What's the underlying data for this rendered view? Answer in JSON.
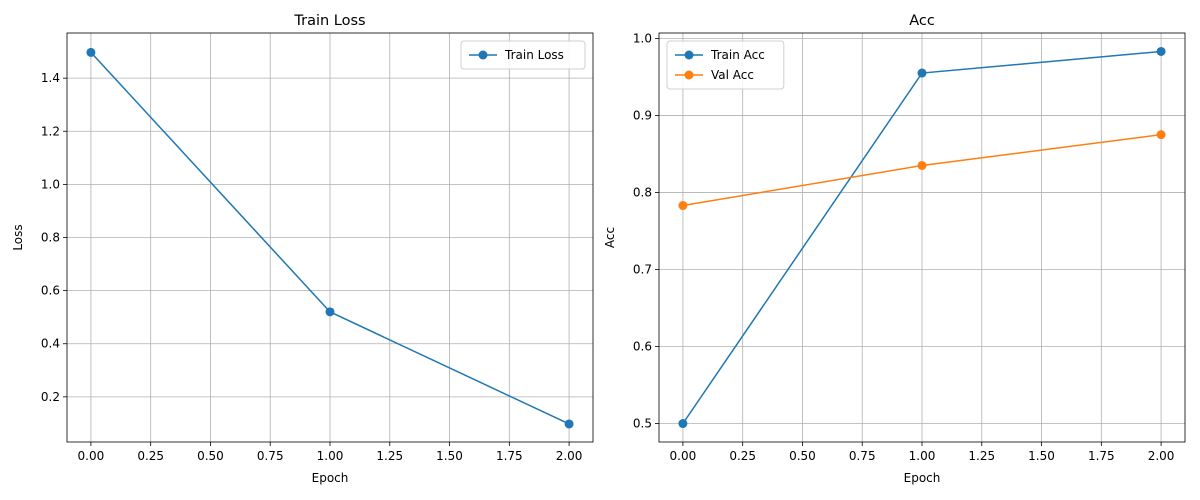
{
  "chart_data": [
    {
      "type": "line",
      "title": "Train Loss",
      "xlabel": "Epoch",
      "ylabel": "Loss",
      "xlim": [
        -0.1,
        2.1
      ],
      "ylim": [
        0.03,
        1.57
      ],
      "xticks": [
        0.0,
        0.25,
        0.5,
        0.75,
        1.0,
        1.25,
        1.5,
        1.75,
        2.0
      ],
      "xtick_labels": [
        "0.00",
        "0.25",
        "0.50",
        "0.75",
        "1.00",
        "1.25",
        "1.50",
        "1.75",
        "2.00"
      ],
      "yticks": [
        0.2,
        0.4,
        0.6,
        0.8,
        1.0,
        1.2,
        1.4
      ],
      "ytick_labels": [
        "0.2",
        "0.4",
        "0.6",
        "0.8",
        "1.0",
        "1.2",
        "1.4"
      ],
      "grid": true,
      "legend_position": "top-right",
      "x": [
        0,
        1,
        2
      ],
      "series": [
        {
          "name": "Train Loss",
          "values": [
            1.497,
            0.52,
            0.098
          ],
          "color": "#1f77b4"
        }
      ]
    },
    {
      "type": "line",
      "title": "Acc",
      "xlabel": "Epoch",
      "ylabel": "Acc",
      "xlim": [
        -0.1,
        2.1
      ],
      "ylim": [
        0.476,
        1.007
      ],
      "xticks": [
        0.0,
        0.25,
        0.5,
        0.75,
        1.0,
        1.25,
        1.5,
        1.75,
        2.0
      ],
      "xtick_labels": [
        "0.00",
        "0.25",
        "0.50",
        "0.75",
        "1.00",
        "1.25",
        "1.50",
        "1.75",
        "2.00"
      ],
      "yticks": [
        0.5,
        0.6,
        0.7,
        0.8,
        0.9,
        1.0
      ],
      "ytick_labels": [
        "0.5",
        "0.6",
        "0.7",
        "0.8",
        "0.9",
        "1.0"
      ],
      "grid": true,
      "legend_position": "top-left",
      "x": [
        0,
        1,
        2
      ],
      "series": [
        {
          "name": "Train Acc",
          "values": [
            0.5,
            0.955,
            0.983
          ],
          "color": "#1f77b4"
        },
        {
          "name": "Val Acc",
          "values": [
            0.783,
            0.835,
            0.875
          ],
          "color": "#ff7f0e"
        }
      ]
    }
  ]
}
